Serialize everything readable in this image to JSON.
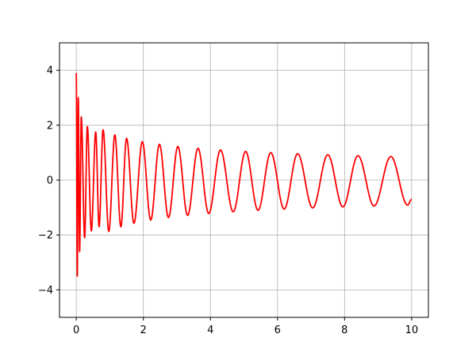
{
  "chart_data": {
    "type": "line",
    "title": "",
    "xlabel": "",
    "ylabel": "",
    "xlim": [
      -0.5,
      10.5
    ],
    "ylim": [
      -5,
      5
    ],
    "grid": true,
    "x_ticks": [
      0,
      2,
      4,
      6,
      8,
      10
    ],
    "y_ticks": [
      -4,
      -2,
      0,
      2,
      4
    ],
    "x_tick_labels": [
      "0",
      "2",
      "4",
      "6",
      "8",
      "10"
    ],
    "y_tick_labels": [
      "−4",
      "−2",
      "0",
      "2",
      "4"
    ],
    "series": [
      {
        "color": "#ff0000",
        "description_of_values": "damped sinusoid y = 3.9 * cos(t)/(1+t)^(1/4) with phase increasing as sqrt",
        "x_start": 0,
        "x_end": 10,
        "peaks": [
          {
            "x": 0.0,
            "y": 3.9
          },
          {
            "x": 0.33,
            "y": 1.95
          },
          {
            "x": 0.8,
            "y": 1.57
          },
          {
            "x": 1.47,
            "y": 1.35
          },
          {
            "x": 2.35,
            "y": 1.22
          },
          {
            "x": 3.45,
            "y": 1.1
          },
          {
            "x": 4.3,
            "y": 1.04
          },
          {
            "x": 5.0,
            "y": 1.0
          },
          {
            "x": 5.8,
            "y": 0.96
          },
          {
            "x": 6.6,
            "y": 0.94
          },
          {
            "x": 7.5,
            "y": 0.9
          },
          {
            "x": 8.4,
            "y": 0.87
          },
          {
            "x": 9.4,
            "y": 0.84
          }
        ],
        "troughs": [
          {
            "x": 0.03,
            "y": -3.5
          },
          {
            "x": 0.1,
            "y": -2.6
          },
          {
            "x": 0.25,
            "y": -2.1
          },
          {
            "x": 0.45,
            "y": -1.85
          },
          {
            "x": 0.95,
            "y": -1.5
          },
          {
            "x": 2.25,
            "y": -1.15
          },
          {
            "x": 3.2,
            "y": -1.08
          },
          {
            "x": 4.65,
            "y": -1.0
          },
          {
            "x": 7.0,
            "y": -0.92
          },
          {
            "x": 9.9,
            "y": -0.82
          }
        ],
        "end_value": -0.7
      }
    ]
  }
}
